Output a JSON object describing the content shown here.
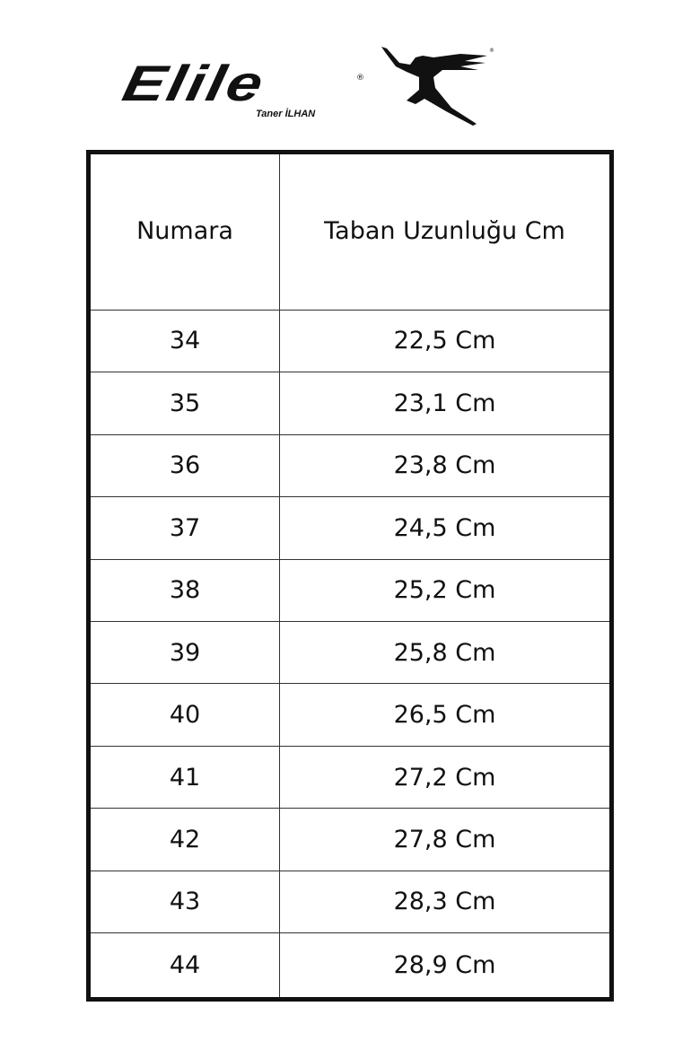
{
  "logo": {
    "brand": "Elile",
    "subtitle": "Taner İLHAN",
    "registered": "®"
  },
  "table": {
    "headers": [
      "Numara",
      "Taban Uzunluğu Cm"
    ],
    "rows": [
      [
        "34",
        "22,5 Cm"
      ],
      [
        "35",
        "23,1 Cm"
      ],
      [
        "36",
        "23,8 Cm"
      ],
      [
        "37",
        "24,5 Cm"
      ],
      [
        "38",
        "25,2 Cm"
      ],
      [
        "39",
        "25,8 Cm"
      ],
      [
        "40",
        "26,5 Cm"
      ],
      [
        "41",
        "27,2 Cm"
      ],
      [
        "42",
        "27,8 Cm"
      ],
      [
        "43",
        "28,3 Cm"
      ],
      [
        "44",
        "28,9 Cm"
      ]
    ]
  }
}
